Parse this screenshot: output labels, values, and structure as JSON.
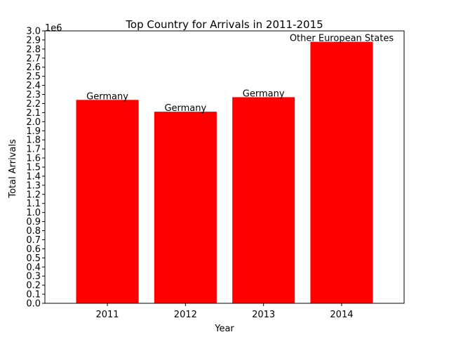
{
  "chart_data": {
    "type": "bar",
    "title": "Top Country for Arrivals in 2011-2015",
    "xlabel": "Year",
    "ylabel": "Total Arrivals",
    "offset_text": "1e6",
    "categories": [
      "2011",
      "2012",
      "2013",
      "2014"
    ],
    "values": [
      2240000,
      2110000,
      2270000,
      2880000
    ],
    "bar_labels": [
      "Germany",
      "Germany",
      "Germany",
      "Other European States"
    ],
    "ylim": [
      0,
      3000000
    ],
    "ytick_labels": [
      "0.0",
      "0.1",
      "0.2",
      "0.3",
      "0.4",
      "0.5",
      "0.6",
      "0.7",
      "0.8",
      "0.9",
      "1.0",
      "1.1",
      "1.2",
      "1.3",
      "1.4",
      "1.5",
      "1.6",
      "1.7",
      "1.8",
      "1.9",
      "2.0",
      "2.1",
      "2.2",
      "2.3",
      "2.4",
      "2.5",
      "2.6",
      "2.7",
      "2.8",
      "2.9",
      "3.0"
    ],
    "bar_color": "#ff0000",
    "grid": false,
    "legend": "none"
  }
}
